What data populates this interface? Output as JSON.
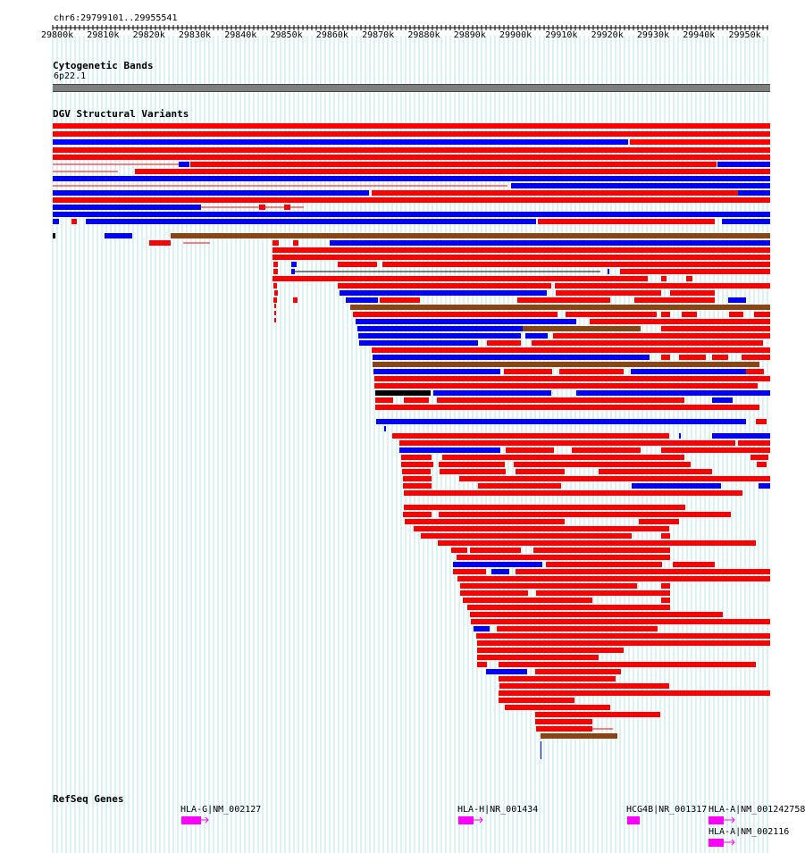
{
  "browser": {
    "locus": "chr6:29799101..29955541",
    "ruler_labels": [
      "29800k",
      "29810k",
      "29820k",
      "29830k",
      "29840k",
      "29850k",
      "29860k",
      "29870k",
      "29880k",
      "29890k",
      "29900k",
      "29910k",
      "29920k",
      "29930k",
      "29940k",
      "29950k"
    ],
    "region_start": 29799101,
    "region_end": 29955541
  },
  "tracks": {
    "cytoband_title": "Cytogenetic Bands",
    "cytoband_name": "6p22.1",
    "dgv_title": "DGV Structural Variants",
    "refseq_title": "RefSeq Genes"
  },
  "genes": [
    {
      "label": "HLA-G|NM_002127"
    },
    {
      "label": "HLA-H|NR_001434"
    },
    {
      "label": "HCG4B|NR_001317"
    },
    {
      "label": "HLA-A|NM_001242758"
    },
    {
      "label": "HLA-A|NM_002116"
    }
  ],
  "colors": {
    "loss": "#ff0000",
    "gain": "#0000ff",
    "complex": "#8b4513",
    "other": "#000000",
    "gene": "#ff00ff",
    "grid": "#b7e4e8"
  }
}
